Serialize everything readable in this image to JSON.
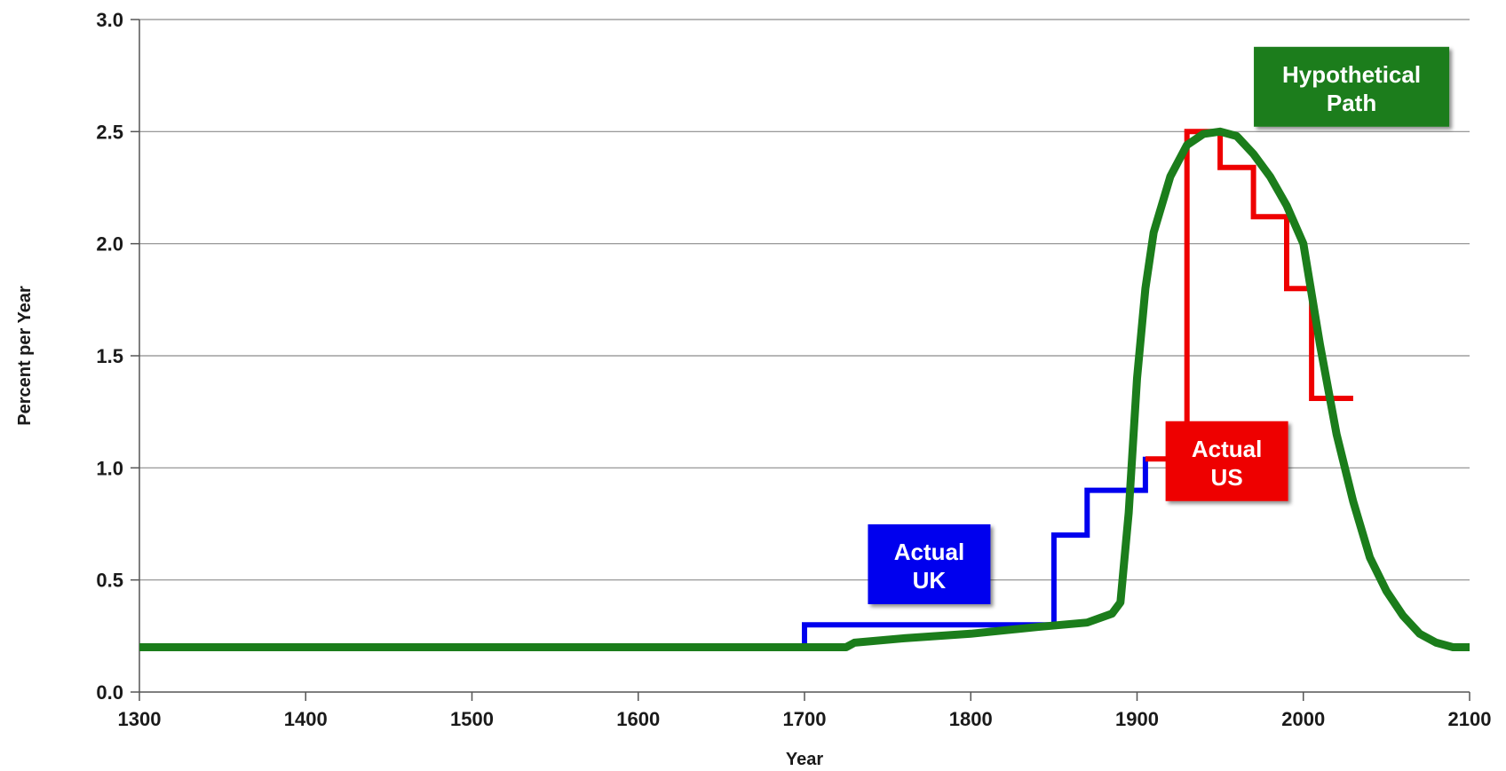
{
  "chart_data": {
    "type": "line",
    "title": "",
    "xlabel": "Year",
    "ylabel": "Percent per Year",
    "xlim": [
      1300,
      2100
    ],
    "ylim": [
      0,
      3.0
    ],
    "x_ticks": [
      "1300",
      "1400",
      "1500",
      "1600",
      "1700",
      "1800",
      "1900",
      "2000",
      "2100"
    ],
    "y_ticks": [
      "0.0",
      "0.5",
      "1.0",
      "1.5",
      "2.0",
      "2.5",
      "3.0"
    ],
    "grid": true,
    "legend": "none",
    "series": [
      {
        "name": "Actual UK",
        "color": "#0000ee",
        "step": true,
        "points": [
          [
            1300,
            0.2
          ],
          [
            1700,
            0.2
          ],
          [
            1700,
            0.3
          ],
          [
            1850,
            0.3
          ],
          [
            1850,
            0.7
          ],
          [
            1870,
            0.7
          ],
          [
            1870,
            0.9
          ],
          [
            1905,
            0.9
          ],
          [
            1905,
            1.05
          ]
        ]
      },
      {
        "name": "Actual US",
        "color": "#ee0000",
        "step": true,
        "points": [
          [
            1905,
            1.04
          ],
          [
            1930,
            1.04
          ],
          [
            1930,
            2.5
          ],
          [
            1950,
            2.5
          ],
          [
            1950,
            2.34
          ],
          [
            1970,
            2.34
          ],
          [
            1970,
            2.12
          ],
          [
            1990,
            2.12
          ],
          [
            1990,
            1.8
          ],
          [
            2005,
            1.8
          ],
          [
            2005,
            1.31
          ],
          [
            2030,
            1.31
          ]
        ]
      },
      {
        "name": "Hypothetical Path",
        "color": "#1b7d1b",
        "step": false,
        "points": [
          [
            1300,
            0.2
          ],
          [
            1725,
            0.2
          ],
          [
            1730,
            0.22
          ],
          [
            1760,
            0.24
          ],
          [
            1800,
            0.26
          ],
          [
            1840,
            0.29
          ],
          [
            1870,
            0.31
          ],
          [
            1885,
            0.35
          ],
          [
            1890,
            0.4
          ],
          [
            1895,
            0.8
          ],
          [
            1900,
            1.4
          ],
          [
            1905,
            1.8
          ],
          [
            1910,
            2.05
          ],
          [
            1920,
            2.3
          ],
          [
            1930,
            2.44
          ],
          [
            1940,
            2.49
          ],
          [
            1950,
            2.5
          ],
          [
            1960,
            2.48
          ],
          [
            1970,
            2.4
          ],
          [
            1980,
            2.3
          ],
          [
            1990,
            2.17
          ],
          [
            2000,
            2.0
          ],
          [
            2010,
            1.55
          ],
          [
            2020,
            1.15
          ],
          [
            2030,
            0.85
          ],
          [
            2040,
            0.6
          ],
          [
            2050,
            0.45
          ],
          [
            2060,
            0.34
          ],
          [
            2070,
            0.26
          ],
          [
            2080,
            0.22
          ],
          [
            2090,
            0.2
          ],
          [
            2100,
            0.2
          ]
        ]
      }
    ],
    "annotations": [
      {
        "lines": [
          "Actual",
          "UK"
        ],
        "x": 1775,
        "y": 0.57,
        "bg": "#0000ee"
      },
      {
        "lines": [
          "Actual",
          "US"
        ],
        "x": 1954,
        "y": 1.03,
        "bg": "#ee0000"
      },
      {
        "lines": [
          "Hypothetical",
          "Path"
        ],
        "x": 2029,
        "y": 2.7,
        "bg": "#1b7d1b"
      }
    ]
  }
}
